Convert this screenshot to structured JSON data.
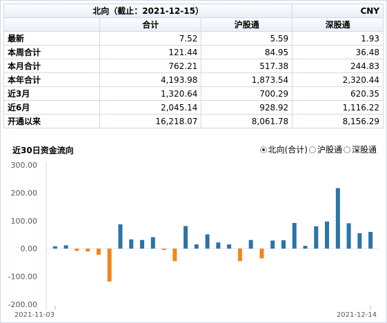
{
  "table": {
    "title": "北向（截止：2021-12-15）",
    "currency": "CNY",
    "headers": [
      "合计",
      "沪股通",
      "深股通"
    ],
    "rows": [
      {
        "label": "最新",
        "values": [
          "7.52",
          "5.59",
          "1.93"
        ]
      },
      {
        "label": "本周合计",
        "values": [
          "121.44",
          "84.95",
          "36.48"
        ]
      },
      {
        "label": "本月合计",
        "values": [
          "762.21",
          "517.38",
          "244.83"
        ]
      },
      {
        "label": "本年合计",
        "values": [
          "4,193.98",
          "1,873.54",
          "2,320.44"
        ]
      },
      {
        "label": "近3月",
        "values": [
          "1,320.64",
          "700.29",
          "620.35"
        ]
      },
      {
        "label": "近6月",
        "values": [
          "2,045.14",
          "928.92",
          "1,116.22"
        ]
      },
      {
        "label": "开通以来",
        "values": [
          "16,218.07",
          "8,061.78",
          "8,156.29"
        ]
      }
    ]
  },
  "chart_section": {
    "title": "近30日资金流向",
    "options": [
      "北向(合计)",
      "沪股通",
      "深股通"
    ],
    "selected_option": "北向(合计)"
  },
  "chart_data": {
    "type": "bar",
    "title": "",
    "xlabel": "",
    "ylabel": "",
    "ylim": [
      -200,
      300
    ],
    "yticks": [
      "300.00",
      "200.00",
      "100.00",
      "0.00",
      "-100.00",
      "-200.00"
    ],
    "x_start_label": "2021-11-03",
    "x_end_label": "2021-12-14",
    "values": [
      8,
      12,
      -8,
      -10,
      -22,
      -118,
      87,
      33,
      31,
      41,
      -5,
      -45,
      81,
      15,
      51,
      22,
      15,
      -45,
      31,
      -35,
      29,
      30,
      92,
      10,
      80,
      97,
      217,
      91,
      55,
      60
    ],
    "colors": {
      "positive": "#2b74a7",
      "negative": "#f0861d"
    },
    "grid": false
  }
}
